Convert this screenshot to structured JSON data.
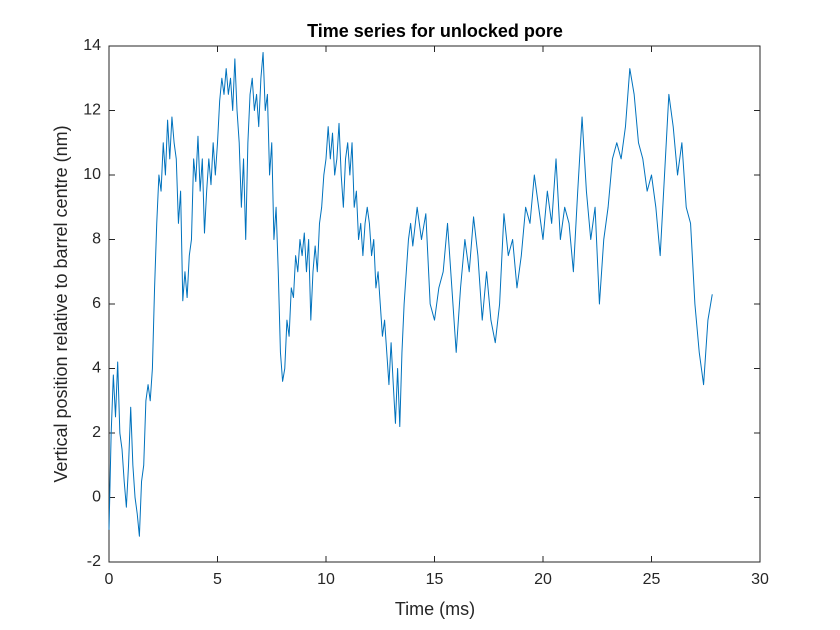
{
  "chart_data": {
    "type": "line",
    "title": "Time series for unlocked pore",
    "x_label": "Time (ms)",
    "y_label": "Vertical position relative to barrel centre (nm)",
    "xlim": [
      0,
      30
    ],
    "xticks": [
      0,
      5,
      10,
      15,
      20,
      25,
      30
    ],
    "ylim": [
      -2,
      14
    ],
    "yticks": [
      -2,
      0,
      2,
      4,
      6,
      8,
      10,
      12,
      14
    ],
    "grid": false,
    "x": [
      0.0,
      0.1,
      0.2,
      0.3,
      0.4,
      0.5,
      0.6,
      0.7,
      0.8,
      0.9,
      1.0,
      1.1,
      1.2,
      1.3,
      1.4,
      1.5,
      1.6,
      1.7,
      1.8,
      1.9,
      2.0,
      2.1,
      2.2,
      2.3,
      2.4,
      2.5,
      2.6,
      2.7,
      2.8,
      2.9,
      3.0,
      3.1,
      3.2,
      3.3,
      3.4,
      3.5,
      3.6,
      3.7,
      3.8,
      3.9,
      4.0,
      4.1,
      4.2,
      4.3,
      4.4,
      4.5,
      4.6,
      4.7,
      4.8,
      4.9,
      5.0,
      5.1,
      5.2,
      5.3,
      5.4,
      5.5,
      5.6,
      5.7,
      5.8,
      5.9,
      6.0,
      6.1,
      6.2,
      6.3,
      6.4,
      6.5,
      6.6,
      6.7,
      6.8,
      6.9,
      7.0,
      7.1,
      7.2,
      7.3,
      7.4,
      7.5,
      7.6,
      7.7,
      7.8,
      7.9,
      8.0,
      8.1,
      8.2,
      8.3,
      8.4,
      8.5,
      8.6,
      8.7,
      8.8,
      8.9,
      9.0,
      9.1,
      9.2,
      9.3,
      9.4,
      9.5,
      9.6,
      9.7,
      9.8,
      9.9,
      10.0,
      10.1,
      10.2,
      10.3,
      10.4,
      10.5,
      10.6,
      10.7,
      10.8,
      10.9,
      11.0,
      11.1,
      11.2,
      11.3,
      11.4,
      11.5,
      11.6,
      11.7,
      11.8,
      11.9,
      12.0,
      12.1,
      12.2,
      12.3,
      12.4,
      12.5,
      12.6,
      12.7,
      12.8,
      12.9,
      13.0,
      13.1,
      13.2,
      13.3,
      13.4,
      13.5,
      13.6,
      13.7,
      13.8,
      13.9,
      14.0,
      14.2,
      14.4,
      14.6,
      14.8,
      15.0,
      15.2,
      15.4,
      15.6,
      15.8,
      16.0,
      16.2,
      16.4,
      16.6,
      16.8,
      17.0,
      17.2,
      17.4,
      17.6,
      17.8,
      18.0,
      18.2,
      18.4,
      18.6,
      18.8,
      19.0,
      19.2,
      19.4,
      19.6,
      19.8,
      20.0,
      20.2,
      20.4,
      20.6,
      20.8,
      21.0,
      21.2,
      21.4,
      21.6,
      21.8,
      22.0,
      22.2,
      22.4,
      22.6,
      22.8,
      23.0,
      23.2,
      23.4,
      23.6,
      23.8,
      24.0,
      24.2,
      24.4,
      24.6,
      24.8,
      25.0,
      25.2,
      25.4,
      25.6,
      25.8,
      26.0,
      26.2,
      26.4,
      26.6,
      26.8,
      27.0,
      27.2,
      27.4,
      27.6,
      27.8
    ],
    "series": [
      {
        "color": "#0072bd",
        "values": [
          -1,
          2,
          3.8,
          2.5,
          4.2,
          2,
          1.5,
          0.5,
          -0.3,
          1,
          2.8,
          1,
          0,
          -0.5,
          -1.2,
          0.5,
          1,
          3,
          3.5,
          3,
          4,
          6.5,
          8.5,
          10,
          9.5,
          11,
          10,
          11.7,
          10.5,
          11.8,
          11,
          10.5,
          8.5,
          9.5,
          6.1,
          7,
          6.2,
          7.5,
          8,
          10.5,
          9.8,
          11.2,
          9.5,
          10.5,
          8.2,
          9.5,
          10.5,
          9.7,
          11,
          10,
          11,
          12.3,
          13,
          12.5,
          13.3,
          12.5,
          13,
          12,
          13.6,
          12,
          11,
          9,
          10.5,
          8,
          11,
          12.5,
          13,
          12,
          12.5,
          11.5,
          13,
          13.8,
          12,
          12.5,
          10,
          11,
          8,
          9,
          7,
          4.5,
          3.6,
          4,
          5.5,
          5,
          6.5,
          6.2,
          7.5,
          7,
          8,
          7.5,
          8.2,
          7,
          8,
          5.5,
          7,
          7.8,
          7,
          8.5,
          9,
          10,
          10.5,
          11.5,
          10.5,
          11.3,
          10,
          10.5,
          11.6,
          10,
          9,
          10.5,
          11,
          10,
          11,
          9,
          9.5,
          8,
          8.5,
          7.5,
          8.5,
          9,
          8.5,
          7.5,
          8,
          6.5,
          7,
          6,
          5,
          5.5,
          4.5,
          3.5,
          4.8,
          3.5,
          2.3,
          4,
          2.2,
          4.5,
          6,
          7,
          8,
          8.5,
          7.8,
          9,
          8,
          8.8,
          6,
          5.5,
          6.5,
          7,
          8.5,
          6.5,
          4.5,
          6.5,
          8,
          7,
          8.7,
          7.5,
          5.5,
          7,
          5.5,
          4.8,
          6,
          8.8,
          7.5,
          8,
          6.5,
          7.5,
          9,
          8.5,
          10,
          9,
          8,
          9.5,
          8.5,
          10.5,
          8,
          9,
          8.5,
          7,
          9.5,
          11.8,
          9.5,
          8,
          9,
          6,
          8,
          9,
          10.5,
          11,
          10.5,
          11.5,
          13.3,
          12.5,
          11,
          10.5,
          9.5,
          10,
          9,
          7.5,
          10,
          12.5,
          11.5,
          10,
          11,
          9,
          8.5,
          6,
          4.5,
          3.5,
          5.5,
          6.3
        ]
      }
    ]
  }
}
